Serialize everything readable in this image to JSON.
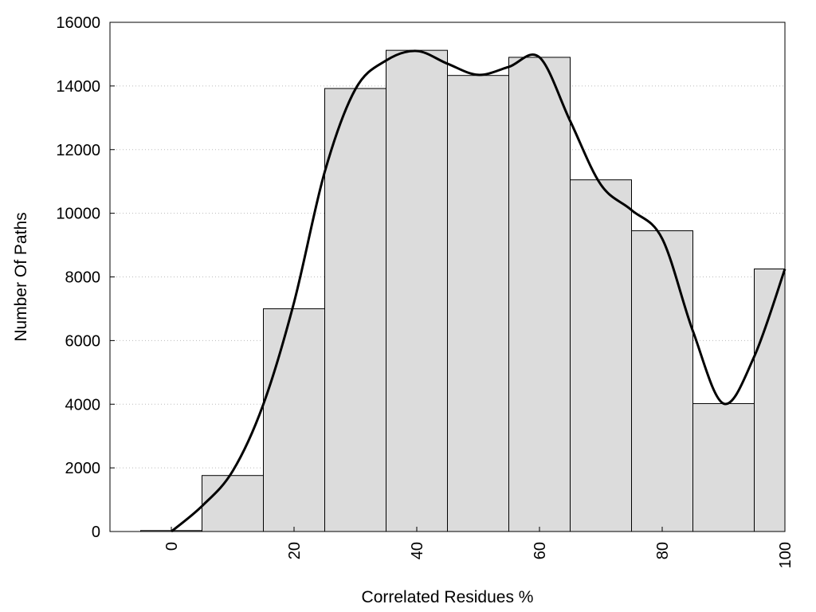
{
  "chart_data": {
    "type": "bar",
    "title": "",
    "xlabel": "Correlated Residues %",
    "ylabel": "Number Of Paths",
    "xlim": [
      -10,
      100
    ],
    "ylim": [
      0,
      16000
    ],
    "x_ticks": [
      0,
      20,
      40,
      60,
      80,
      100
    ],
    "x_tick_labels": [
      "0",
      "20",
      "40",
      "60",
      "80",
      "100"
    ],
    "y_ticks": [
      0,
      2000,
      4000,
      6000,
      8000,
      10000,
      12000,
      14000,
      16000
    ],
    "y_tick_labels": [
      "0",
      "2000",
      "4000",
      "6000",
      "8000",
      "10000",
      "12000",
      "14000",
      "16000"
    ],
    "grid": "horizontal dotted",
    "bar_width": 10,
    "bars": [
      {
        "center": 0,
        "value": 30
      },
      {
        "center": 10,
        "value": 1760
      },
      {
        "center": 20,
        "value": 7000
      },
      {
        "center": 30,
        "value": 13920
      },
      {
        "center": 40,
        "value": 15120
      },
      {
        "center": 50,
        "value": 14330
      },
      {
        "center": 60,
        "value": 14900
      },
      {
        "center": 70,
        "value": 11050
      },
      {
        "center": 80,
        "value": 9450
      },
      {
        "center": 90,
        "value": 4020
      },
      {
        "center": 100,
        "value": 8250
      }
    ],
    "smooth_curve": {
      "x": [
        0,
        5,
        10,
        15,
        20,
        25,
        30,
        35,
        40,
        45,
        50,
        55,
        60,
        65,
        70,
        75,
        80,
        85,
        90,
        95,
        100
      ],
      "y": [
        0,
        800,
        1900,
        4000,
        7200,
        11300,
        13900,
        14800,
        15100,
        14700,
        14350,
        14600,
        14900,
        12900,
        10900,
        10100,
        9200,
        6300,
        4020,
        5500,
        8250
      ]
    },
    "colors": {
      "bar_fill": "#dcdcdc",
      "bar_stroke": "#000000",
      "curve": "#000000",
      "grid": "#bbbbbb"
    }
  }
}
